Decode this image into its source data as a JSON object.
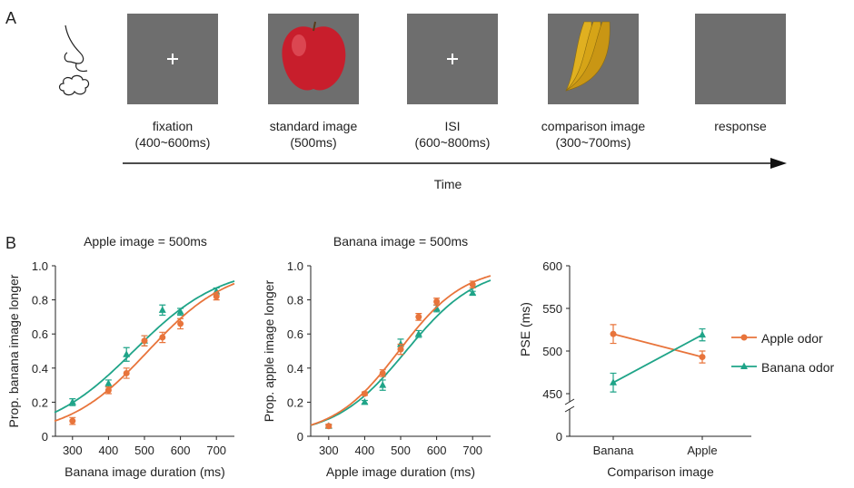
{
  "panel_a": {
    "label": "A",
    "stimuli": [
      {
        "name": "fixation",
        "line1": "fixation",
        "line2": "(400~600ms)",
        "content": "plus"
      },
      {
        "name": "standard-image",
        "line1": "standard image",
        "line2": "(500ms)",
        "content": "apple"
      },
      {
        "name": "isi",
        "line1": "ISI",
        "line2": "(600~800ms)",
        "content": "plus"
      },
      {
        "name": "comparison-image",
        "line1": "comparison image",
        "line2": "(300~700ms)",
        "content": "banana"
      },
      {
        "name": "response",
        "line1": "response",
        "line2": "",
        "content": "blank"
      }
    ],
    "time_label": "Time",
    "icons": [
      "nose-icon",
      "odor-cloud-icon"
    ],
    "screen_color": "#6e6e6e"
  },
  "panel_b": {
    "label": "B"
  },
  "colors": {
    "apple_odor": "#e8743b",
    "banana_odor": "#1fa488"
  },
  "chart_data": [
    {
      "type": "line",
      "title": "Apple image = 500ms",
      "xlabel": "Banana image duration (ms)",
      "ylabel": "Prop. banana image longer",
      "xlim": [
        250,
        750
      ],
      "ylim": [
        0,
        1
      ],
      "xticks": [
        300,
        400,
        500,
        600,
        700
      ],
      "yticks": [
        0,
        0.2,
        0.4,
        0.6,
        0.8,
        1.0
      ],
      "ytick_labels": [
        "0",
        "0.2",
        "0.4",
        "0.6",
        "0.8",
        "1.0"
      ],
      "x": [
        300,
        400,
        450,
        500,
        550,
        600,
        700
      ],
      "series": [
        {
          "key": "banana_odor",
          "marker": "triangle",
          "values": [
            0.2,
            0.31,
            0.48,
            0.56,
            0.74,
            0.73,
            0.85
          ],
          "err": [
            0.02,
            0.02,
            0.04,
            0.03,
            0.03,
            0.02,
            0.02
          ],
          "fit": {
            "pse": 470,
            "scale": 121
          }
        },
        {
          "key": "apple_odor",
          "marker": "circle",
          "values": [
            0.09,
            0.27,
            0.37,
            0.56,
            0.58,
            0.66,
            0.82
          ],
          "err": [
            0.02,
            0.02,
            0.03,
            0.03,
            0.03,
            0.03,
            0.02
          ],
          "fit": {
            "pse": 510,
            "scale": 112
          }
        }
      ]
    },
    {
      "type": "line",
      "title": "Banana image = 500ms",
      "xlabel": "Apple image duration (ms)",
      "ylabel": "Prop. apple image longer",
      "xlim": [
        250,
        750
      ],
      "ylim": [
        0,
        1
      ],
      "xticks": [
        300,
        400,
        500,
        600,
        700
      ],
      "yticks": [
        0,
        0.2,
        0.4,
        0.6,
        0.8,
        1.0
      ],
      "ytick_labels": [
        "0",
        "0.2",
        "0.4",
        "0.6",
        "0.8",
        "1.0"
      ],
      "x": [
        300,
        400,
        450,
        500,
        550,
        600,
        700
      ],
      "series": [
        {
          "key": "banana_odor",
          "marker": "triangle",
          "values": [
            0.06,
            0.2,
            0.3,
            0.54,
            0.6,
            0.75,
            0.84
          ],
          "err": [
            0.01,
            0.01,
            0.03,
            0.03,
            0.02,
            0.02,
            0.01
          ],
          "fit": {
            "pse": 515,
            "scale": 99
          }
        },
        {
          "key": "apple_odor",
          "marker": "circle",
          "values": [
            0.06,
            0.25,
            0.37,
            0.51,
            0.7,
            0.79,
            0.89
          ],
          "err": [
            0.01,
            0.01,
            0.02,
            0.03,
            0.02,
            0.02,
            0.02
          ],
          "fit": {
            "pse": 495,
            "scale": 92
          }
        }
      ]
    },
    {
      "type": "line",
      "title": "",
      "xlabel": "Comparison image",
      "ylabel": "PSE (ms)",
      "categories": [
        "Banana",
        "Apple"
      ],
      "ylim": [
        450,
        600
      ],
      "axis_break": true,
      "yticks": [
        0,
        450,
        500,
        550,
        600
      ],
      "legend": {
        "placement": "right",
        "entries": [
          {
            "key": "apple_odor",
            "label": "Apple odor",
            "marker": "circle"
          },
          {
            "key": "banana_odor",
            "label": "Banana odor",
            "marker": "triangle"
          }
        ]
      },
      "series": [
        {
          "key": "apple_odor",
          "name": "Apple odor",
          "marker": "circle",
          "values": [
            520,
            493
          ],
          "err": [
            11,
            7
          ]
        },
        {
          "key": "banana_odor",
          "name": "Banana odor",
          "marker": "triangle",
          "values": [
            463,
            519
          ],
          "err": [
            11,
            7
          ]
        }
      ]
    }
  ]
}
